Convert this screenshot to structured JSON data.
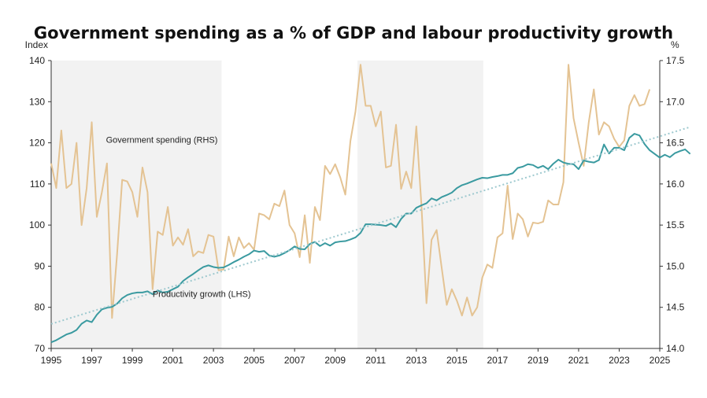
{
  "title": "Government spending as a % of GDP and labour productivity growth",
  "chart_data": {
    "type": "line",
    "title": "Government spending as a % of GDP and labour productivity growth",
    "left_axis": {
      "unit_label": "Index",
      "min": 70,
      "max": 140,
      "ticks": [
        "70",
        "80",
        "90",
        "100",
        "110",
        "120",
        "130",
        "140"
      ]
    },
    "right_axis": {
      "unit_label": "%",
      "min": 14.0,
      "max": 17.5,
      "ticks": [
        "14.0",
        "14.5",
        "15.0",
        "15.5",
        "16.0",
        "16.5",
        "17.0",
        "17.5"
      ]
    },
    "x_axis": {
      "min": 1995,
      "max": 2025,
      "ticks": [
        "1995",
        "1997",
        "1999",
        "2001",
        "2003",
        "2005",
        "2007",
        "2009",
        "2011",
        "2013",
        "2015",
        "2017",
        "2019",
        "2021",
        "2023",
        "2025"
      ]
    },
    "shaded_periods": [
      [
        1995,
        2003.4
      ],
      [
        2010.1,
        2016.3
      ]
    ],
    "annotations": [
      {
        "text": "Government spending (RHS)",
        "at": [
          1997.7,
          16.5
        ],
        "axis": "right"
      },
      {
        "text": "Productivity growth (LHS)",
        "at": [
          2000.0,
          82.5
        ],
        "axis": "left"
      }
    ],
    "series": [
      {
        "name": "Productivity growth (LHS)",
        "axis": "left",
        "color": "#3a9aa0",
        "x_start": 1995,
        "x_step": 0.25,
        "values": [
          71.5,
          72.0,
          72.7,
          73.4,
          73.8,
          74.5,
          76.0,
          76.8,
          76.4,
          78.2,
          79.5,
          79.9,
          80.1,
          80.9,
          82.2,
          83.0,
          83.4,
          83.6,
          83.6,
          83.9,
          83.2,
          84.1,
          83.6,
          83.8,
          84.4,
          85.0,
          86.4,
          87.3,
          88.1,
          89.0,
          89.8,
          90.2,
          89.8,
          89.6,
          89.7,
          90.3,
          91.0,
          91.6,
          92.3,
          92.9,
          93.8,
          93.5,
          93.7,
          92.6,
          92.3,
          92.6,
          93.2,
          93.9,
          94.8,
          94.2,
          94.1,
          95.4,
          95.9,
          94.9,
          95.6,
          95.0,
          95.8,
          96.0,
          96.1,
          96.5,
          97.0,
          98.1,
          100.2,
          100.2,
          100.1,
          100.0,
          99.8,
          100.4,
          99.5,
          101.5,
          102.8,
          102.8,
          104.2,
          104.8,
          105.3,
          106.5,
          106.0,
          106.8,
          107.3,
          107.9,
          109.0,
          109.7,
          110.1,
          110.6,
          111.1,
          111.5,
          111.4,
          111.7,
          111.9,
          112.2,
          112.2,
          112.6,
          113.9,
          114.2,
          114.8,
          114.6,
          113.9,
          114.4,
          113.6,
          114.9,
          115.9,
          115.2,
          114.9,
          114.8,
          113.6,
          115.7,
          115.4,
          115.2,
          115.8,
          119.6,
          117.4,
          118.8,
          118.8,
          118.2,
          121.2,
          122.2,
          121.8,
          119.7,
          118.2,
          117.3,
          116.4,
          117.1,
          116.5,
          117.5,
          118.0,
          118.4,
          117.3
        ]
      },
      {
        "name": "Government spending (RHS)",
        "axis": "right",
        "color": "#e4c393",
        "x_start": 1995,
        "x_step": 0.25,
        "values": [
          16.25,
          15.95,
          16.65,
          15.95,
          16.0,
          16.5,
          15.5,
          15.95,
          16.75,
          15.6,
          15.9,
          16.25,
          14.37,
          15.15,
          16.05,
          16.03,
          15.9,
          15.6,
          16.2,
          15.9,
          14.72,
          15.42,
          15.38,
          15.72,
          15.25,
          15.35,
          15.26,
          15.45,
          15.12,
          15.18,
          15.16,
          15.38,
          15.36,
          14.95,
          14.96,
          15.36,
          15.12,
          15.35,
          15.22,
          15.28,
          15.2,
          15.64,
          15.62,
          15.57,
          15.76,
          15.73,
          15.92,
          15.5,
          15.4,
          15.11,
          15.62,
          15.04,
          15.72,
          15.56,
          16.22,
          16.12,
          16.24,
          16.08,
          15.87,
          16.52,
          16.88,
          17.45,
          16.95,
          16.95,
          16.7,
          16.88,
          16.2,
          16.22,
          16.72,
          15.94,
          16.15,
          15.95,
          16.7,
          15.75,
          14.55,
          15.32,
          15.44,
          14.98,
          14.53,
          14.72,
          14.58,
          14.4,
          14.62,
          14.4,
          14.5,
          14.86,
          15.02,
          14.98,
          15.35,
          15.4,
          15.98,
          15.33,
          15.64,
          15.57,
          15.36,
          15.53,
          15.52,
          15.54,
          15.8,
          15.75,
          15.75,
          16.02,
          17.45,
          16.8,
          16.5,
          16.22,
          16.75,
          17.15,
          16.6,
          16.75,
          16.7,
          16.55,
          16.45,
          16.53,
          16.95,
          17.08,
          16.95,
          16.97,
          17.15
        ]
      }
    ]
  }
}
